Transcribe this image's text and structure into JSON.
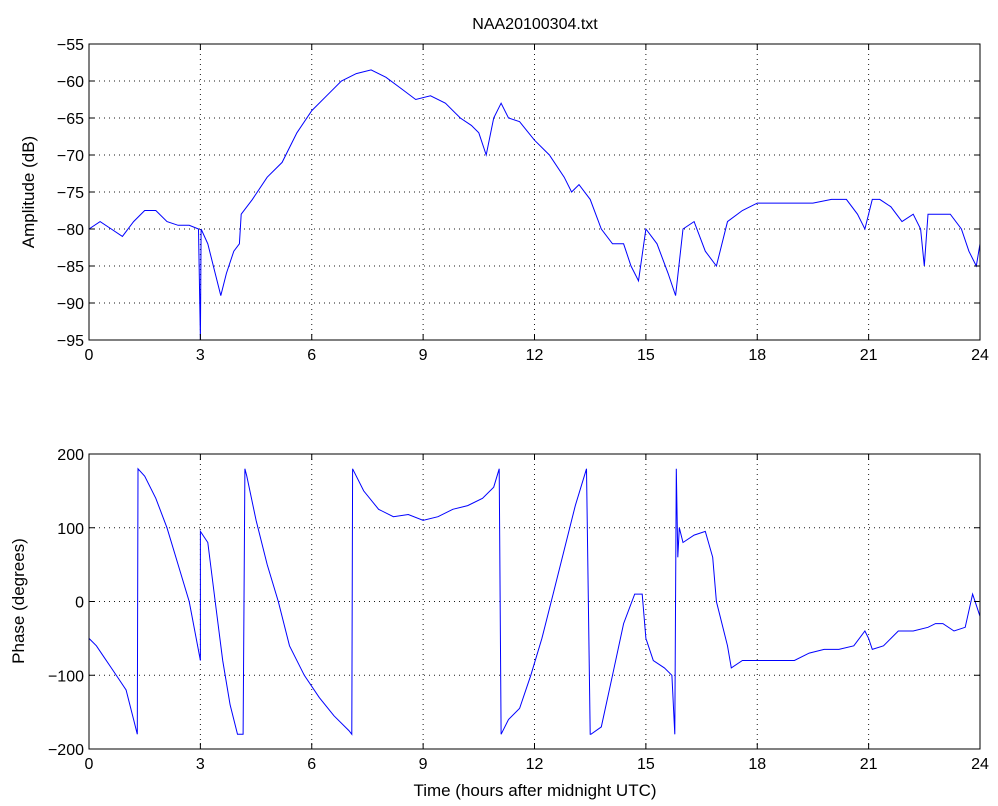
{
  "chart_data": [
    {
      "type": "line",
      "title": "NAA20100304.txt",
      "xlabel": "",
      "ylabel": "Amplitude (dB)",
      "xlim": [
        0,
        24
      ],
      "ylim": [
        -95,
        -55
      ],
      "xticks": [
        0,
        3,
        6,
        9,
        12,
        15,
        18,
        21,
        24
      ],
      "yticks": [
        -95,
        -90,
        -85,
        -80,
        -75,
        -70,
        -65,
        -60,
        -55
      ],
      "grid": true,
      "series": [
        {
          "color": "#0000ff",
          "x": [
            0,
            0.3,
            0.6,
            0.9,
            1.2,
            1.5,
            1.8,
            2.1,
            2.4,
            2.7,
            2.95,
            3.0,
            3.02,
            3.2,
            3.4,
            3.55,
            3.7,
            3.9,
            4.05,
            4.1,
            4.4,
            4.8,
            5.2,
            5.6,
            6.0,
            6.4,
            6.8,
            7.2,
            7.6,
            8.0,
            8.4,
            8.8,
            9.2,
            9.6,
            10.0,
            10.3,
            10.5,
            10.7,
            10.9,
            11.1,
            11.3,
            11.6,
            12.0,
            12.4,
            12.8,
            13.0,
            13.2,
            13.5,
            13.8,
            14.1,
            14.4,
            14.6,
            14.8,
            15.0,
            15.3,
            15.6,
            15.8,
            16.0,
            16.3,
            16.6,
            16.9,
            17.2,
            17.6,
            18.0,
            18.5,
            19.0,
            19.5,
            20.0,
            20.4,
            20.7,
            20.9,
            21.1,
            21.3,
            21.6,
            21.9,
            22.2,
            22.4,
            22.5,
            22.6,
            22.9,
            23.2,
            23.5,
            23.7,
            23.9,
            24.0
          ],
          "values": [
            -80,
            -79,
            -80,
            -81,
            -79,
            -77.5,
            -77.5,
            -79,
            -79.5,
            -79.5,
            -80,
            -95,
            -80,
            -82,
            -86,
            -89,
            -86,
            -83,
            -82,
            -78,
            -76,
            -73,
            -71,
            -67,
            -64,
            -62,
            -60,
            -59,
            -58.5,
            -59.5,
            -61,
            -62.5,
            -62,
            -63,
            -65,
            -66,
            -67,
            -70,
            -65,
            -63,
            -65,
            -65.5,
            -68,
            -70,
            -73,
            -75,
            -74,
            -76,
            -80,
            -82,
            -82,
            -85,
            -87,
            -80,
            -82,
            -86,
            -89,
            -80,
            -79,
            -83,
            -85,
            -79,
            -77.5,
            -76.5,
            -76.5,
            -76.5,
            -76.5,
            -76,
            -76,
            -78,
            -80,
            -76,
            -76,
            -77,
            -79,
            -78,
            -80,
            -85,
            -78,
            -78,
            -78,
            -80,
            -83,
            -85,
            -82
          ]
        }
      ]
    },
    {
      "type": "line",
      "title": "",
      "xlabel": "Time (hours after midnight UTC)",
      "ylabel": "Phase (degrees)",
      "xlim": [
        0,
        24
      ],
      "ylim": [
        -200,
        200
      ],
      "xticks": [
        0,
        3,
        6,
        9,
        12,
        15,
        18,
        21,
        24
      ],
      "yticks": [
        -200,
        -100,
        0,
        100,
        200
      ],
      "grid": true,
      "series": [
        {
          "color": "#0000ff",
          "x": [
            0,
            0.2,
            0.4,
            0.6,
            0.8,
            1.0,
            1.2,
            1.3,
            1.32,
            1.5,
            1.8,
            2.1,
            2.4,
            2.7,
            3.0,
            3.0,
            3.2,
            3.4,
            3.6,
            3.8,
            4.0,
            4.15,
            4.2,
            4.25,
            4.5,
            4.8,
            5.1,
            5.4,
            5.8,
            6.2,
            6.6,
            7.0,
            7.08,
            7.1,
            7.4,
            7.8,
            8.2,
            8.6,
            9.0,
            9.4,
            9.8,
            10.2,
            10.6,
            10.9,
            11.05,
            11.1,
            11.3,
            11.6,
            11.9,
            12.2,
            12.5,
            12.8,
            13.1,
            13.4,
            13.5,
            13.52,
            13.8,
            14.1,
            14.4,
            14.7,
            14.9,
            15.0,
            15.2,
            15.5,
            15.7,
            15.78,
            15.82,
            15.86,
            15.9,
            16.0,
            16.3,
            16.6,
            16.8,
            16.9,
            17.0,
            17.2,
            17.3,
            17.6,
            18.0,
            18.5,
            19.0,
            19.4,
            19.8,
            20.2,
            20.6,
            20.9,
            21.0,
            21.1,
            21.4,
            21.8,
            22.2,
            22.6,
            22.8,
            23.0,
            23.3,
            23.6,
            23.8,
            24.0
          ],
          "values": [
            -50,
            -60,
            -75,
            -90,
            -105,
            -120,
            -160,
            -180,
            180,
            170,
            140,
            100,
            50,
            0,
            -80,
            95,
            80,
            0,
            -80,
            -140,
            -180,
            -180,
            180,
            170,
            110,
            50,
            0,
            -60,
            -100,
            -130,
            -155,
            -175,
            -180,
            180,
            150,
            125,
            115,
            118,
            110,
            115,
            125,
            130,
            140,
            155,
            180,
            -180,
            -160,
            -145,
            -100,
            -50,
            10,
            70,
            130,
            180,
            -180,
            -180,
            -170,
            -100,
            -30,
            10,
            10,
            -50,
            -80,
            -90,
            -100,
            -180,
            180,
            60,
            100,
            80,
            90,
            95,
            60,
            0,
            -20,
            -60,
            -90,
            -80,
            -80,
            -80,
            -80,
            -70,
            -65,
            -65,
            -60,
            -40,
            -50,
            -65,
            -60,
            -40,
            -40,
            -35,
            -30,
            -30,
            -40,
            -35,
            10,
            -20
          ]
        }
      ]
    }
  ]
}
